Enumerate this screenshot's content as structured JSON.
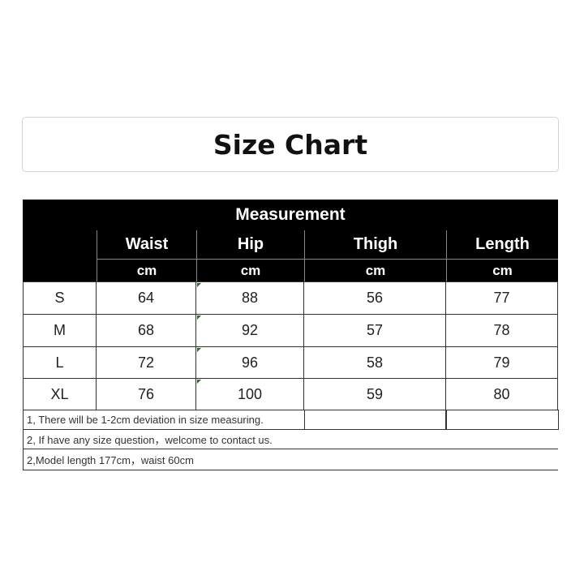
{
  "title": "Size Chart",
  "table": {
    "group_header": "Measurement",
    "columns": [
      "Waist",
      "Hip",
      "Thigh",
      "Length"
    ],
    "units": [
      "cm",
      "cm",
      "cm",
      "cm"
    ],
    "rows": [
      {
        "size": "S",
        "values": [
          "64",
          "88",
          "56",
          "77"
        ]
      },
      {
        "size": "M",
        "values": [
          "68",
          "92",
          "57",
          "78"
        ]
      },
      {
        "size": "L",
        "values": [
          "72",
          "96",
          "58",
          "79"
        ]
      },
      {
        "size": "XL",
        "values": [
          "76",
          "100",
          "59",
          "80"
        ]
      }
    ]
  },
  "notes": [
    "1, There will be 1-2cm deviation in size measuring.",
    "2, If have any size question，welcome to contact us.",
    "2,Model length 177cm，waist 60cm"
  ]
}
